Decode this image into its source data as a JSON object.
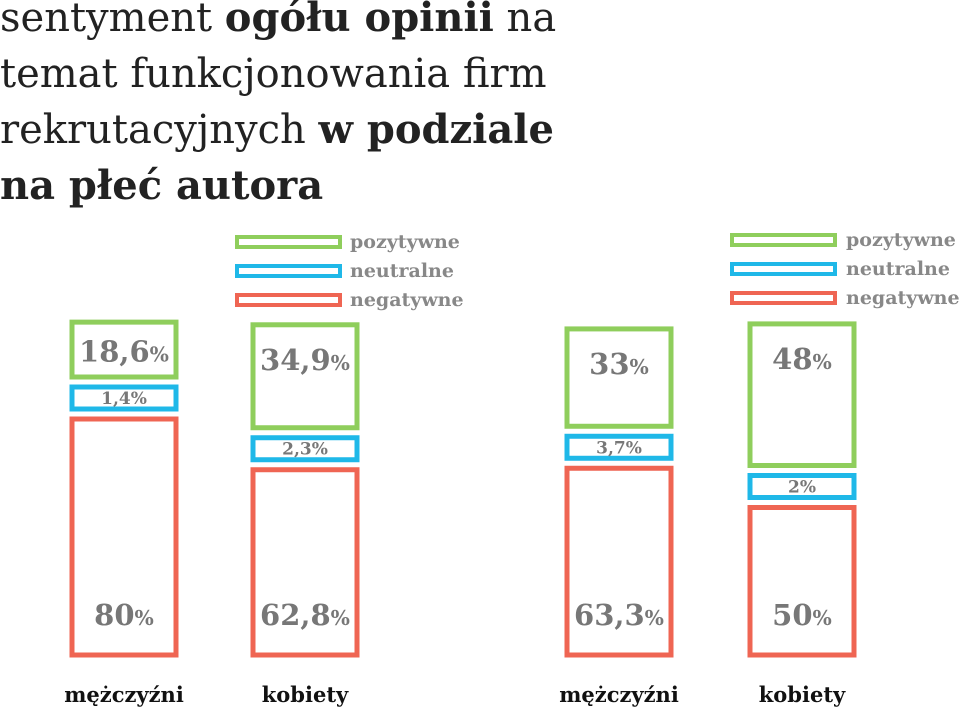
{
  "title": {
    "p1": "sentyment ",
    "p2": "ogółu opinii",
    "p3": " na temat funkcjonowania firm rekrutacyjnych ",
    "p4": "w podziale na płeć autora"
  },
  "colors": {
    "pozytywne": "#8fce5c",
    "neutralne": "#1fb8e8",
    "negatywne": "#ef6553"
  },
  "legend": [
    "pozytywne",
    "neutralne",
    "negatywne"
  ],
  "chart_data": [
    {
      "type": "bar",
      "stacked": true,
      "categories": [
        "mężczyźni",
        "kobiety"
      ],
      "series": [
        {
          "name": "pozytywne",
          "values": [
            18.6,
            34.9
          ],
          "labels": [
            "18,6",
            "34,9"
          ]
        },
        {
          "name": "neutralne",
          "values": [
            1.4,
            2.3
          ],
          "labels": [
            "1,4%",
            "2,3%"
          ]
        },
        {
          "name": "negatywne",
          "values": [
            80,
            62.8
          ],
          "labels": [
            "80",
            "62,8"
          ]
        }
      ]
    },
    {
      "type": "bar",
      "stacked": true,
      "categories": [
        "mężczyźni",
        "kobiety"
      ],
      "series": [
        {
          "name": "pozytywne",
          "values": [
            33,
            48
          ],
          "labels": [
            "33",
            "48"
          ]
        },
        {
          "name": "neutralne",
          "values": [
            3.7,
            2
          ],
          "labels": [
            "3,7%",
            "2%"
          ]
        },
        {
          "name": "negatywne",
          "values": [
            63.3,
            50
          ],
          "labels": [
            "63,3",
            "50"
          ]
        }
      ]
    }
  ]
}
